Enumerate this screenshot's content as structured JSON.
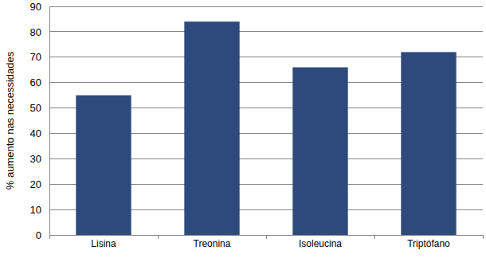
{
  "chart_data": {
    "type": "bar",
    "y_label": "% aumento nas necessidades",
    "categories": [
      "Lisina",
      "Treonina",
      "Isoleucina",
      "Triptófano"
    ],
    "values": [
      55,
      84,
      66,
      72
    ],
    "color": "#2e4a7c",
    "ylim": [
      0,
      90
    ],
    "yticks": [
      0,
      10,
      20,
      30,
      40,
      50,
      60,
      70,
      80,
      90
    ],
    "grid": true
  }
}
